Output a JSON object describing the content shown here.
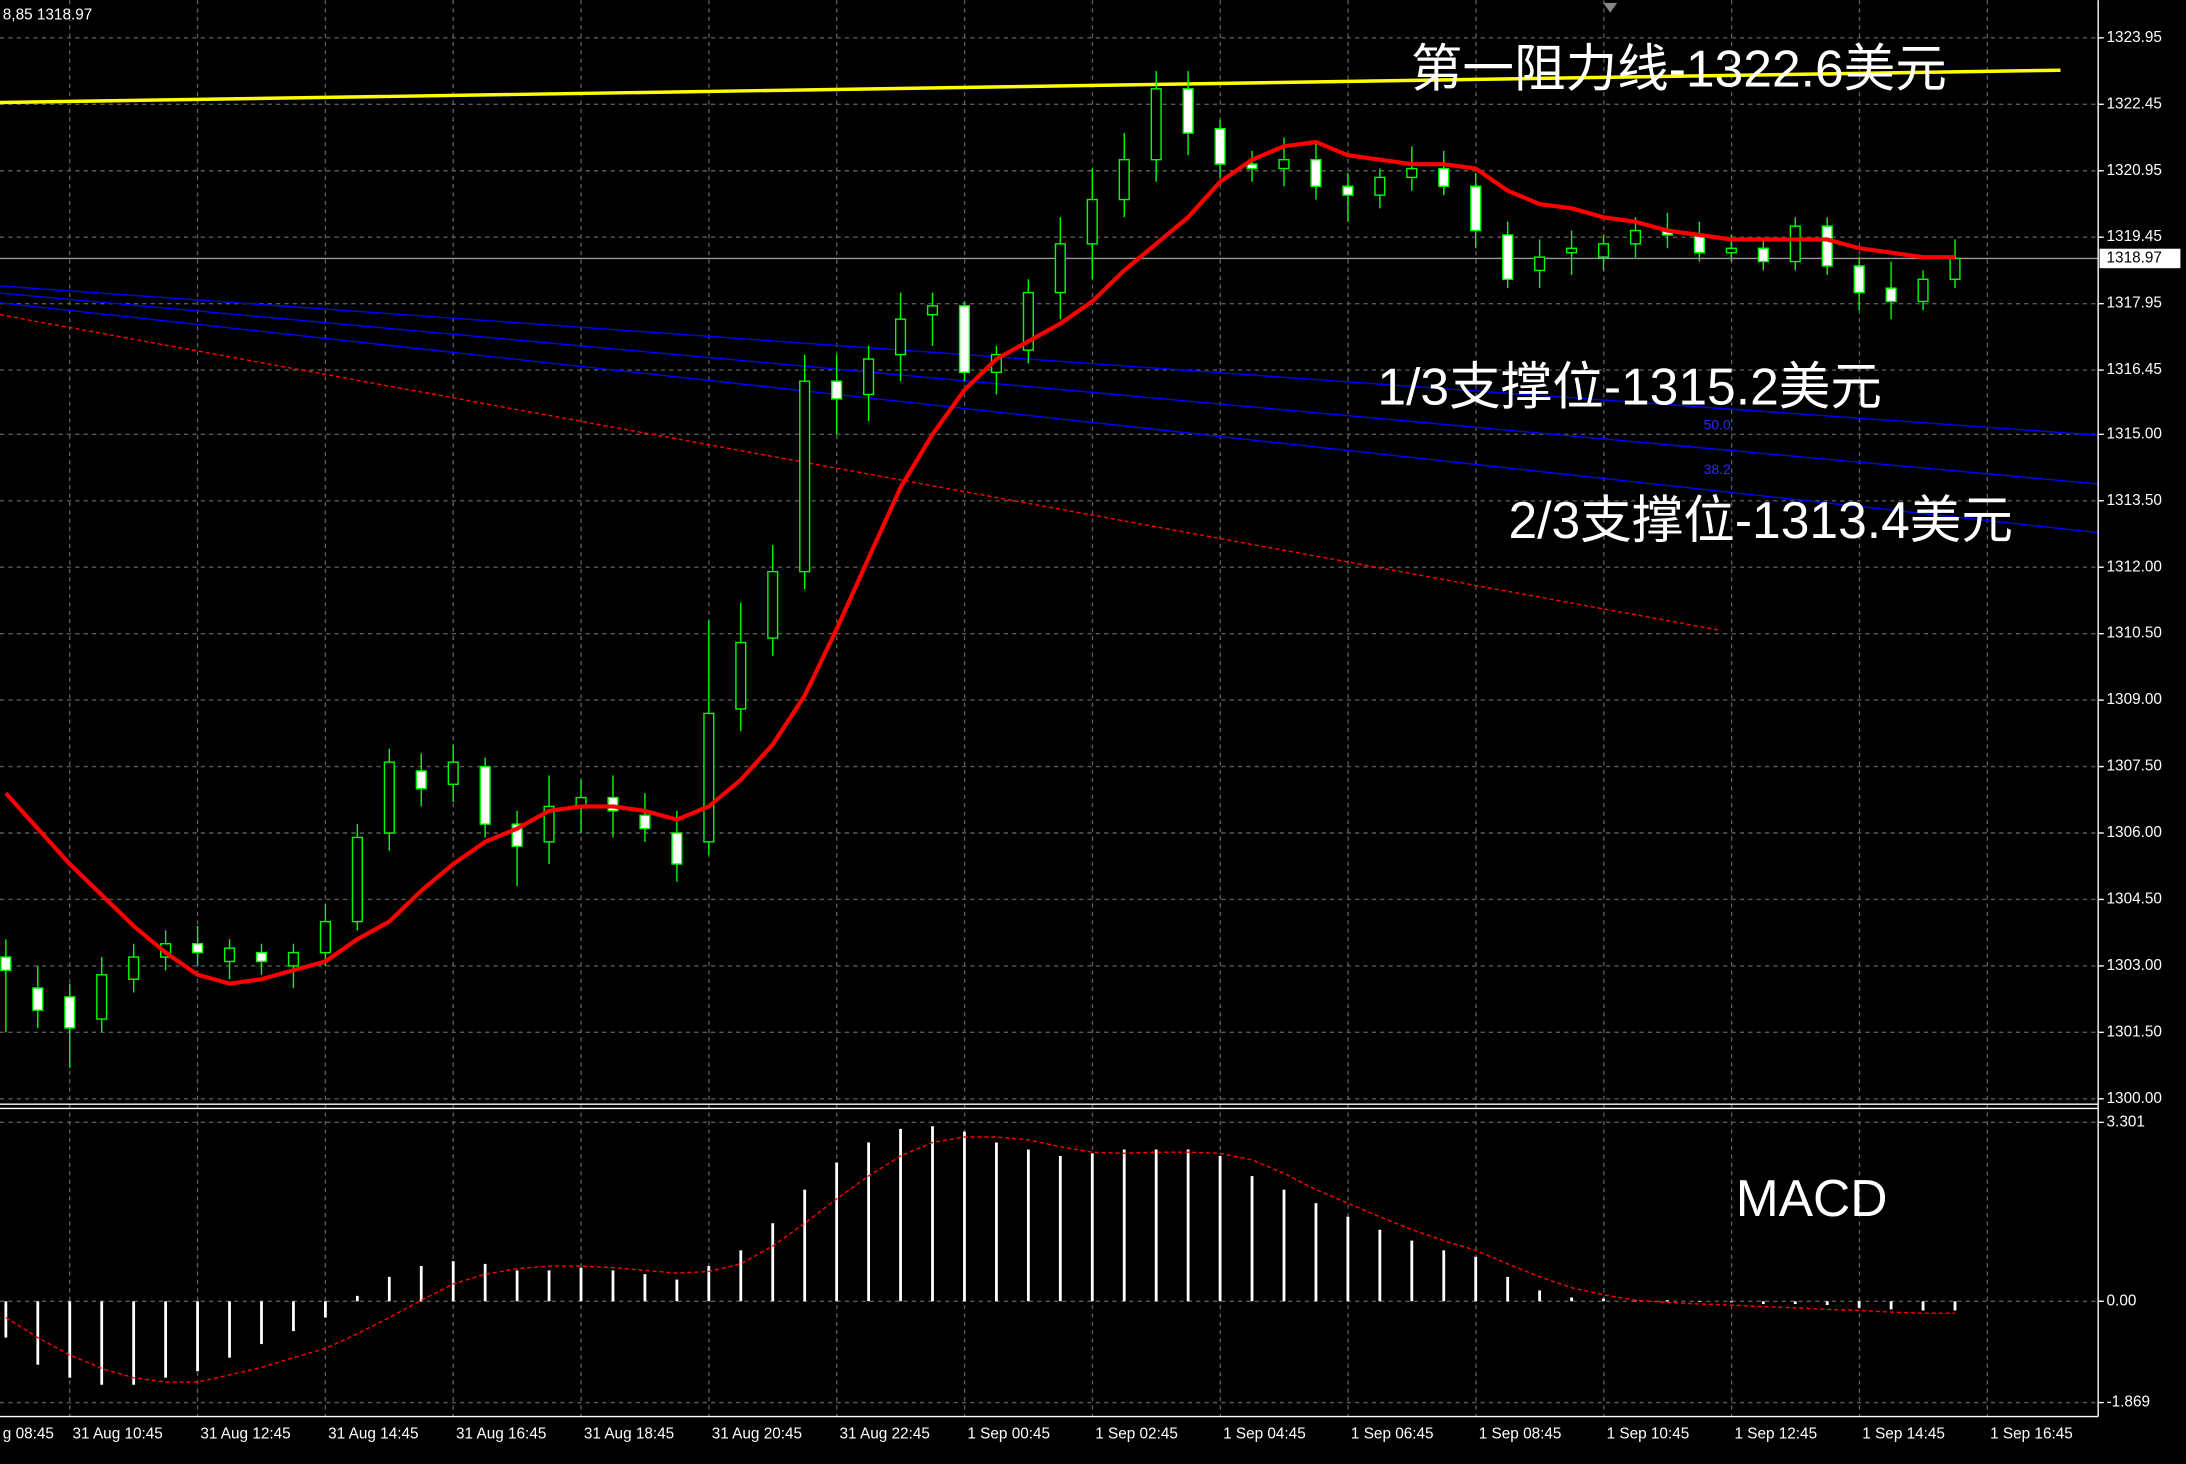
{
  "chart_data": [
    {
      "type": "candlestick",
      "header": "8,85 1318.97",
      "open": [
        1303.2,
        1302.5,
        1302.3,
        1301.8,
        1302.7,
        1303.2,
        1303.5,
        1303.1,
        1303.3,
        1303.0,
        1303.3,
        1304.0,
        1306.0,
        1307.4,
        1307.1,
        1307.5,
        1306.2,
        1305.8,
        1306.6,
        1306.8,
        1306.4,
        1306.0,
        1305.8,
        1308.8,
        1310.4,
        1311.9,
        1316.2,
        1315.9,
        1316.8,
        1317.7,
        1317.9,
        1316.4,
        1316.9,
        1318.2,
        1319.3,
        1320.3,
        1321.2,
        1322.8,
        1321.9,
        1321.1,
        1321.0,
        1321.2,
        1320.6,
        1320.4,
        1320.8,
        1321.0,
        1320.6,
        1319.5,
        1318.7,
        1319.1,
        1319.0,
        1319.3,
        1319.6,
        1319.5,
        1319.1,
        1319.2,
        1318.9,
        1319.7,
        1318.8,
        1318.3,
        1318.0,
        1318.5
      ],
      "high": [
        1303.6,
        1303.0,
        1302.6,
        1303.2,
        1303.5,
        1303.8,
        1303.9,
        1303.6,
        1303.5,
        1303.5,
        1304.4,
        1306.2,
        1307.9,
        1307.8,
        1308.0,
        1307.7,
        1306.5,
        1307.3,
        1307.2,
        1307.3,
        1306.9,
        1306.5,
        1310.8,
        1311.2,
        1312.5,
        1316.8,
        1316.8,
        1317.0,
        1318.2,
        1318.2,
        1318.0,
        1317.0,
        1318.5,
        1319.9,
        1321.0,
        1321.8,
        1323.2,
        1323.2,
        1322.1,
        1321.4,
        1321.7,
        1321.6,
        1320.9,
        1321.0,
        1321.5,
        1321.4,
        1320.9,
        1319.8,
        1319.4,
        1319.6,
        1319.5,
        1319.9,
        1320.0,
        1319.8,
        1319.5,
        1319.4,
        1319.9,
        1319.9,
        1319.0,
        1318.9,
        1318.7,
        1319.4
      ],
      "low": [
        1301.5,
        1301.6,
        1300.7,
        1301.5,
        1302.4,
        1302.9,
        1303.0,
        1302.7,
        1302.8,
        1302.5,
        1303.0,
        1303.8,
        1305.6,
        1306.6,
        1306.7,
        1305.9,
        1304.8,
        1305.3,
        1306.0,
        1305.9,
        1305.8,
        1304.9,
        1305.5,
        1308.3,
        1310.0,
        1311.5,
        1315.0,
        1315.3,
        1316.2,
        1317.0,
        1316.2,
        1315.9,
        1316.6,
        1317.6,
        1318.5,
        1319.9,
        1320.7,
        1321.3,
        1320.8,
        1320.7,
        1320.6,
        1320.3,
        1319.8,
        1320.1,
        1320.5,
        1320.4,
        1319.2,
        1318.3,
        1318.3,
        1318.6,
        1318.7,
        1319.0,
        1319.2,
        1318.9,
        1318.9,
        1318.7,
        1318.7,
        1318.6,
        1317.8,
        1317.6,
        1317.8,
        1318.3
      ],
      "close": [
        1302.9,
        1302.0,
        1301.6,
        1302.8,
        1303.2,
        1303.5,
        1303.3,
        1303.4,
        1303.1,
        1303.3,
        1304.0,
        1305.9,
        1307.6,
        1307.0,
        1307.6,
        1306.2,
        1305.7,
        1306.6,
        1306.8,
        1306.5,
        1306.1,
        1305.3,
        1308.7,
        1310.3,
        1311.9,
        1316.2,
        1315.8,
        1316.7,
        1317.6,
        1317.9,
        1316.4,
        1316.8,
        1318.2,
        1319.3,
        1320.3,
        1321.2,
        1322.8,
        1321.8,
        1321.1,
        1321.0,
        1321.2,
        1320.6,
        1320.4,
        1320.8,
        1321.0,
        1320.6,
        1319.6,
        1318.5,
        1319.0,
        1319.2,
        1319.3,
        1319.6,
        1319.5,
        1319.1,
        1319.2,
        1318.9,
        1319.7,
        1318.8,
        1318.2,
        1318.0,
        1318.5,
        1318.97
      ],
      "up_color": "#000000",
      "down_color": "#ffffff",
      "wick_color": "#00ff00",
      "ma": {
        "color": "#ff0000",
        "values": [
          1306.9,
          1306.1,
          1305.3,
          1304.6,
          1303.9,
          1303.3,
          1302.8,
          1302.6,
          1302.7,
          1302.9,
          1303.1,
          1303.6,
          1304.0,
          1304.7,
          1305.3,
          1305.8,
          1306.1,
          1306.5,
          1306.6,
          1306.6,
          1306.5,
          1306.3,
          1306.6,
          1307.2,
          1308.0,
          1309.1,
          1310.6,
          1312.2,
          1313.8,
          1315.0,
          1316.0,
          1316.7,
          1317.1,
          1317.5,
          1318.0,
          1318.7,
          1319.3,
          1319.9,
          1320.7,
          1321.2,
          1321.5,
          1321.6,
          1321.3,
          1321.2,
          1321.1,
          1321.1,
          1321.0,
          1320.5,
          1320.2,
          1320.1,
          1319.9,
          1319.8,
          1319.6,
          1319.5,
          1319.4,
          1319.4,
          1319.4,
          1319.4,
          1319.2,
          1319.1,
          1319.0,
          1319.0
        ]
      },
      "resistance_line": {
        "color": "#ffff00",
        "values": [
          1322.49,
          1323.22
        ]
      },
      "channel_lines": [
        {
          "color": "#0000ff",
          "values": [
            1318.35,
            1314.98
          ]
        },
        {
          "color": "#0000ff",
          "values": [
            1318.19,
            1313.88
          ]
        },
        {
          "color": "#0000ff",
          "values": [
            1317.97,
            1312.78
          ]
        }
      ],
      "dashed_line": {
        "color": "#ff0000",
        "values": [
          1317.7,
          1310.57
        ]
      },
      "fib_labels": [
        "50.0",
        "38.2"
      ],
      "annotations": [
        "第一阻力线-1322.6美元",
        "1/3支撑位-1315.2美元",
        "2/3支撑位-1313.4美元"
      ],
      "current_price": 1318.97,
      "ylim": [
        1299.94,
        1324.74
      ],
      "yticks": [
        1323.95,
        1322.45,
        1320.95,
        1319.45,
        1317.95,
        1316.45,
        {
          "value": 1315,
          "label": "1315.00"
        },
        {
          "value": 1313.5,
          "label": "1313.50"
        },
        {
          "value": 1312,
          "label": "1312.00"
        },
        {
          "value": 1310.5,
          "label": "1310.50"
        },
        {
          "value": 1309,
          "label": "1309.00"
        },
        {
          "value": 1307.5,
          "label": "1307.50"
        },
        {
          "value": 1306,
          "label": "1306.00"
        },
        {
          "value": 1304.5,
          "label": "1304.50"
        },
        {
          "value": 1303,
          "label": "1303.00"
        },
        {
          "value": 1301.5,
          "label": "1301.50"
        },
        {
          "value": 1300,
          "label": "1300.00"
        }
      ],
      "x_labels": [
        "g 08:45",
        "31 Aug 10:45",
        "31 Aug 12:45",
        "31 Aug 14:45",
        "31 Aug 16:45",
        "31 Aug 18:45",
        "31 Aug 20:45",
        "31 Aug 22:45",
        "1 Sep 00:45",
        "1 Sep 02:45",
        "1 Sep 04:45",
        "1 Sep 06:45",
        "1 Sep 08:45",
        "1 Sep 10:45",
        "1 Sep 12:45",
        "1 Sep 14:45",
        "1 Sep 16:45"
      ],
      "grid": true
    },
    {
      "type": "macd",
      "title": "MACD",
      "color": "#ffffff",
      "values": [
        -0.67,
        -1.17,
        -1.41,
        -1.54,
        -1.54,
        -1.41,
        -1.29,
        -1.04,
        -0.79,
        -0.55,
        -0.3,
        0.1,
        0.45,
        0.65,
        0.74,
        0.69,
        0.57,
        0.57,
        0.62,
        0.57,
        0.5,
        0.4,
        0.65,
        0.94,
        1.44,
        2.06,
        2.56,
        2.93,
        3.18,
        3.23,
        3.13,
        2.93,
        2.8,
        2.68,
        2.73,
        2.8,
        2.8,
        2.8,
        2.68,
        2.31,
        2.06,
        1.81,
        1.56,
        1.32,
        1.12,
        0.94,
        0.82,
        0.45,
        0.2,
        0.07,
        0.05,
        0.02,
        0.02,
        0.0,
        -0.02,
        -0.05,
        -0.05,
        -0.07,
        -0.12,
        -0.15,
        -0.17,
        -0.17
      ],
      "signal": {
        "color": "#ff0000",
        "values": [
          -0.3,
          -0.67,
          -0.99,
          -1.24,
          -1.41,
          -1.49,
          -1.49,
          -1.36,
          -1.22,
          -1.04,
          -0.87,
          -0.6,
          -0.3,
          0.02,
          0.32,
          0.5,
          0.6,
          0.65,
          0.65,
          0.62,
          0.57,
          0.52,
          0.55,
          0.69,
          1.02,
          1.44,
          1.89,
          2.31,
          2.68,
          2.93,
          3.03,
          3.03,
          2.98,
          2.85,
          2.75,
          2.73,
          2.75,
          2.75,
          2.73,
          2.61,
          2.36,
          2.06,
          1.81,
          1.56,
          1.32,
          1.12,
          0.94,
          0.69,
          0.45,
          0.25,
          0.12,
          0.02,
          -0.02,
          -0.05,
          -0.07,
          -0.1,
          -0.12,
          -0.15,
          -0.17,
          -0.2,
          -0.22,
          -0.22
        ]
      },
      "ylim": [
        -1.869,
        3.301
      ],
      "yticks": [
        3.301,
        {
          "value": 0,
          "label": "0.00"
        },
        -1.869
      ],
      "grid": true
    }
  ]
}
